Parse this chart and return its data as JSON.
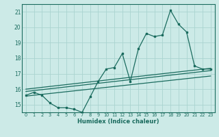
{
  "xlabel": "Humidex (Indice chaleur)",
  "background_color": "#cceae7",
  "grid_color": "#aad4d0",
  "line_color": "#1a6b5e",
  "xlim": [
    -0.5,
    23.5
  ],
  "ylim": [
    14.5,
    21.5
  ],
  "yticks": [
    15,
    16,
    17,
    18,
    19,
    20,
    21
  ],
  "xticks": [
    0,
    1,
    2,
    3,
    4,
    5,
    6,
    7,
    8,
    9,
    10,
    11,
    12,
    13,
    14,
    15,
    16,
    17,
    18,
    19,
    20,
    21,
    22,
    23
  ],
  "series1_x": [
    0,
    1,
    2,
    3,
    4,
    5,
    6,
    7,
    8,
    9,
    10,
    11,
    12,
    13,
    14,
    15,
    16,
    17,
    18,
    19,
    20,
    21,
    22,
    23
  ],
  "series1_y": [
    15.6,
    15.8,
    15.6,
    15.1,
    14.8,
    14.8,
    14.7,
    14.5,
    15.5,
    16.5,
    17.3,
    17.4,
    18.3,
    16.5,
    18.6,
    19.6,
    19.4,
    19.5,
    21.1,
    20.2,
    19.7,
    17.5,
    17.3,
    17.3
  ],
  "line2_x": [
    0,
    23
  ],
  "line2_y": [
    16.0,
    17.35
  ],
  "line3_x": [
    0,
    23
  ],
  "line3_y": [
    15.85,
    17.2
  ],
  "line4_x": [
    0,
    23
  ],
  "line4_y": [
    15.55,
    16.85
  ]
}
